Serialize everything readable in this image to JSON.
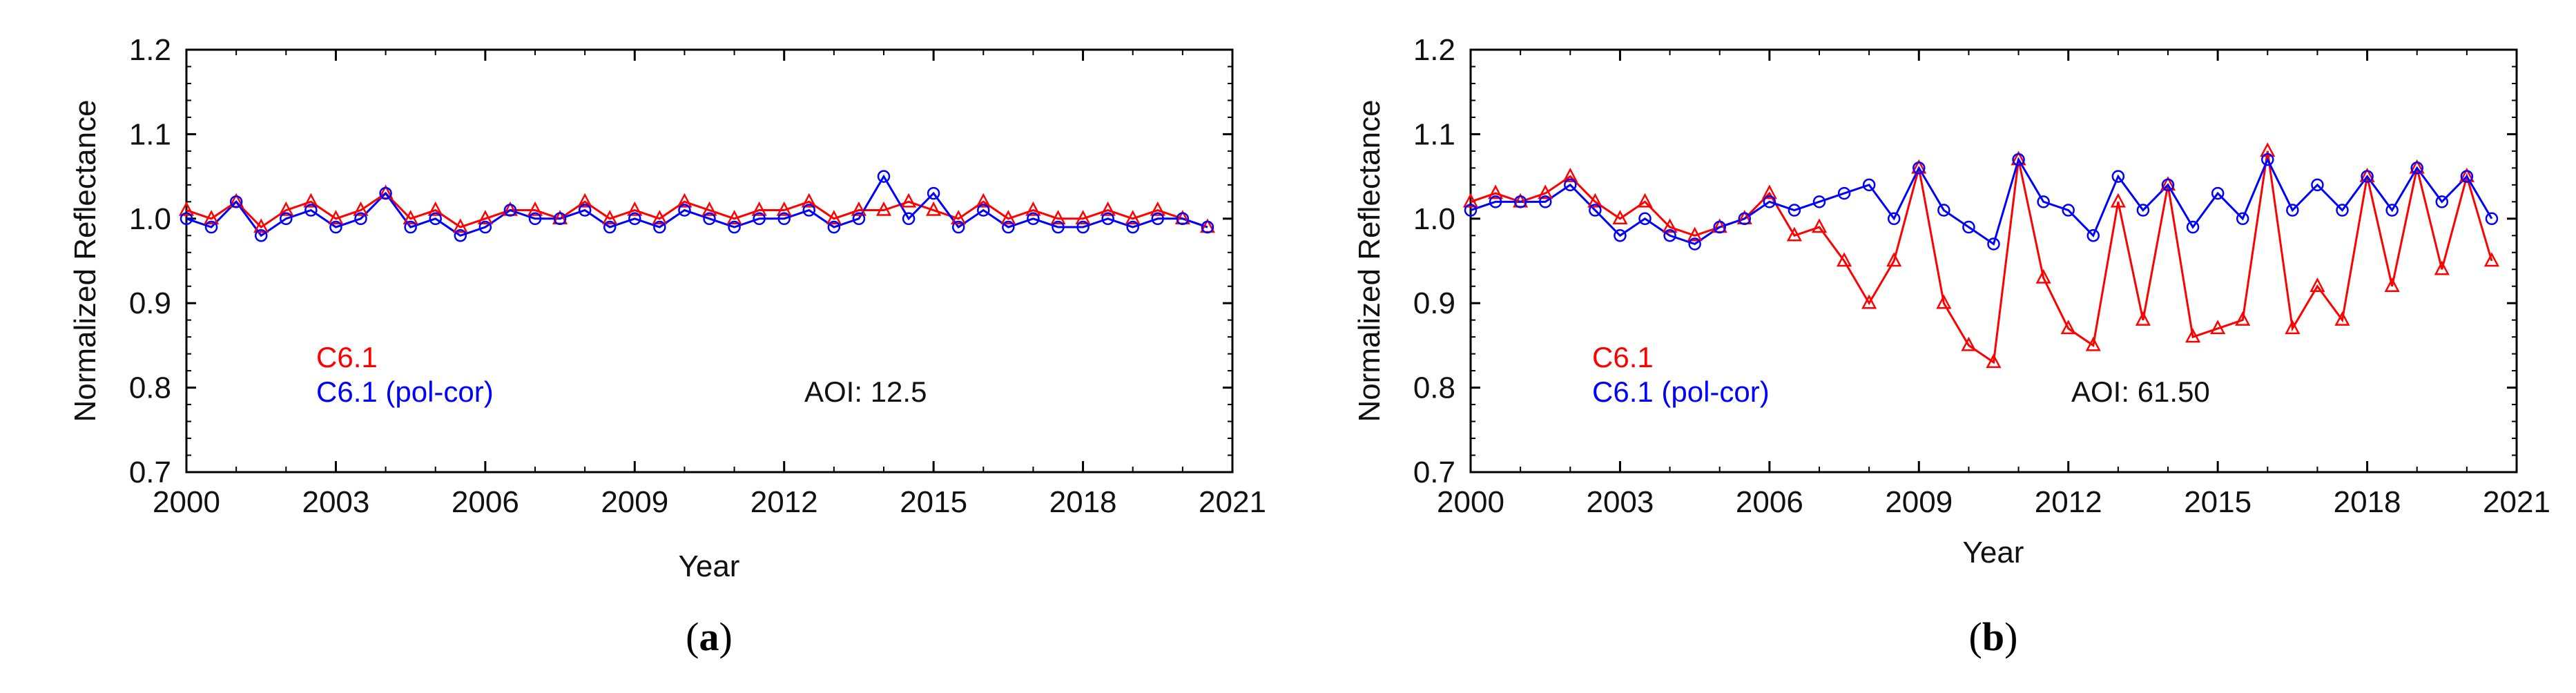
{
  "figure": {
    "panels": [
      {
        "label_open": "(",
        "label_letter": "a",
        "label_close": ")",
        "aoi_text": "AOI: 12.5"
      },
      {
        "label_open": "(",
        "label_letter": "b",
        "label_close": ")",
        "aoi_text": "AOI: 61.50"
      }
    ]
  },
  "colors": {
    "c61": "#ff0000",
    "c61_pol": "#0000ff",
    "axis": "#000000"
  },
  "chart_data": [
    {
      "type": "line",
      "title": "",
      "xlabel": "Year",
      "ylabel": "Normalized  Reflectance",
      "xlim": [
        2000,
        2021
      ],
      "ylim": [
        0.7,
        1.2
      ],
      "x_ticks": [
        "2000",
        "2003",
        "2006",
        "2009",
        "2012",
        "2015",
        "2018",
        "2021"
      ],
      "y_ticks": [
        "0.7",
        "0.8",
        "0.9",
        "1.0",
        "1.1",
        "1.2"
      ],
      "annotation": "AOI: 12.5",
      "x": [
        2000.0,
        2000.5,
        2001.0,
        2001.5,
        2002.0,
        2002.5,
        2003.0,
        2003.5,
        2004.0,
        2004.5,
        2005.0,
        2005.5,
        2006.0,
        2006.5,
        2007.0,
        2007.5,
        2008.0,
        2008.5,
        2009.0,
        2009.5,
        2010.0,
        2010.5,
        2011.0,
        2011.5,
        2012.0,
        2012.5,
        2013.0,
        2013.5,
        2014.0,
        2014.5,
        2015.0,
        2015.5,
        2016.0,
        2016.5,
        2017.0,
        2017.5,
        2018.0,
        2018.5,
        2019.0,
        2019.5,
        2020.0,
        2020.5
      ],
      "series": [
        {
          "name": "C6.1",
          "marker": "triangle",
          "values": [
            1.01,
            1.0,
            1.02,
            0.99,
            1.01,
            1.02,
            1.0,
            1.01,
            1.03,
            1.0,
            1.01,
            0.99,
            1.0,
            1.01,
            1.01,
            1.0,
            1.02,
            1.0,
            1.01,
            1.0,
            1.02,
            1.01,
            1.0,
            1.01,
            1.01,
            1.02,
            1.0,
            1.01,
            1.01,
            1.02,
            1.01,
            1.0,
            1.02,
            1.0,
            1.01,
            1.0,
            1.0,
            1.01,
            1.0,
            1.01,
            1.0,
            0.99
          ]
        },
        {
          "name": "C6.1 (pol-cor)",
          "marker": "circle",
          "values": [
            1.0,
            0.99,
            1.02,
            0.98,
            1.0,
            1.01,
            0.99,
            1.0,
            1.03,
            0.99,
            1.0,
            0.98,
            0.99,
            1.01,
            1.0,
            1.0,
            1.01,
            0.99,
            1.0,
            0.99,
            1.01,
            1.0,
            0.99,
            1.0,
            1.0,
            1.01,
            0.99,
            1.0,
            1.05,
            1.0,
            1.03,
            0.99,
            1.01,
            0.99,
            1.0,
            0.99,
            0.99,
            1.0,
            0.99,
            1.0,
            1.0,
            0.99
          ]
        }
      ],
      "legend_position": "bottom-left"
    },
    {
      "type": "line",
      "title": "",
      "xlabel": "Year",
      "ylabel": "Normalized  Reflectance",
      "xlim": [
        2000,
        2021
      ],
      "ylim": [
        0.7,
        1.2
      ],
      "x_ticks": [
        "2000",
        "2003",
        "2006",
        "2009",
        "2012",
        "2015",
        "2018",
        "2021"
      ],
      "y_ticks": [
        "0.7",
        "0.8",
        "0.9",
        "1.0",
        "1.1",
        "1.2"
      ],
      "annotation": "AOI: 61.50",
      "x": [
        2000.0,
        2000.5,
        2001.0,
        2001.5,
        2002.0,
        2002.5,
        2003.0,
        2003.5,
        2004.0,
        2004.5,
        2005.0,
        2005.5,
        2006.0,
        2006.5,
        2007.0,
        2007.5,
        2008.0,
        2008.5,
        2009.0,
        2009.5,
        2010.0,
        2010.5,
        2011.0,
        2011.5,
        2012.0,
        2012.5,
        2013.0,
        2013.5,
        2014.0,
        2014.5,
        2015.0,
        2015.5,
        2016.0,
        2016.5,
        2017.0,
        2017.5,
        2018.0,
        2018.5,
        2019.0,
        2019.5,
        2020.0,
        2020.5
      ],
      "series": [
        {
          "name": "C6.1",
          "marker": "triangle",
          "values": [
            1.02,
            1.03,
            1.02,
            1.03,
            1.05,
            1.02,
            1.0,
            1.02,
            0.99,
            0.98,
            0.99,
            1.0,
            1.03,
            0.98,
            0.99,
            0.95,
            0.9,
            0.95,
            1.06,
            0.9,
            0.85,
            0.83,
            1.07,
            0.93,
            0.87,
            0.85,
            1.02,
            0.88,
            1.04,
            0.86,
            0.87,
            0.88,
            1.08,
            0.87,
            0.92,
            0.88,
            1.05,
            0.92,
            1.06,
            0.94,
            1.05,
            0.95
          ]
        },
        {
          "name": "C6.1 (pol-cor)",
          "marker": "circle",
          "values": [
            1.01,
            1.02,
            1.02,
            1.02,
            1.04,
            1.01,
            0.98,
            1.0,
            0.98,
            0.97,
            0.99,
            1.0,
            1.02,
            1.01,
            1.02,
            1.03,
            1.04,
            1.0,
            1.06,
            1.01,
            0.99,
            0.97,
            1.07,
            1.02,
            1.01,
            0.98,
            1.05,
            1.01,
            1.04,
            0.99,
            1.03,
            1.0,
            1.07,
            1.01,
            1.04,
            1.01,
            1.05,
            1.01,
            1.06,
            1.02,
            1.05,
            1.0
          ]
        }
      ],
      "legend_position": "bottom-left"
    }
  ]
}
